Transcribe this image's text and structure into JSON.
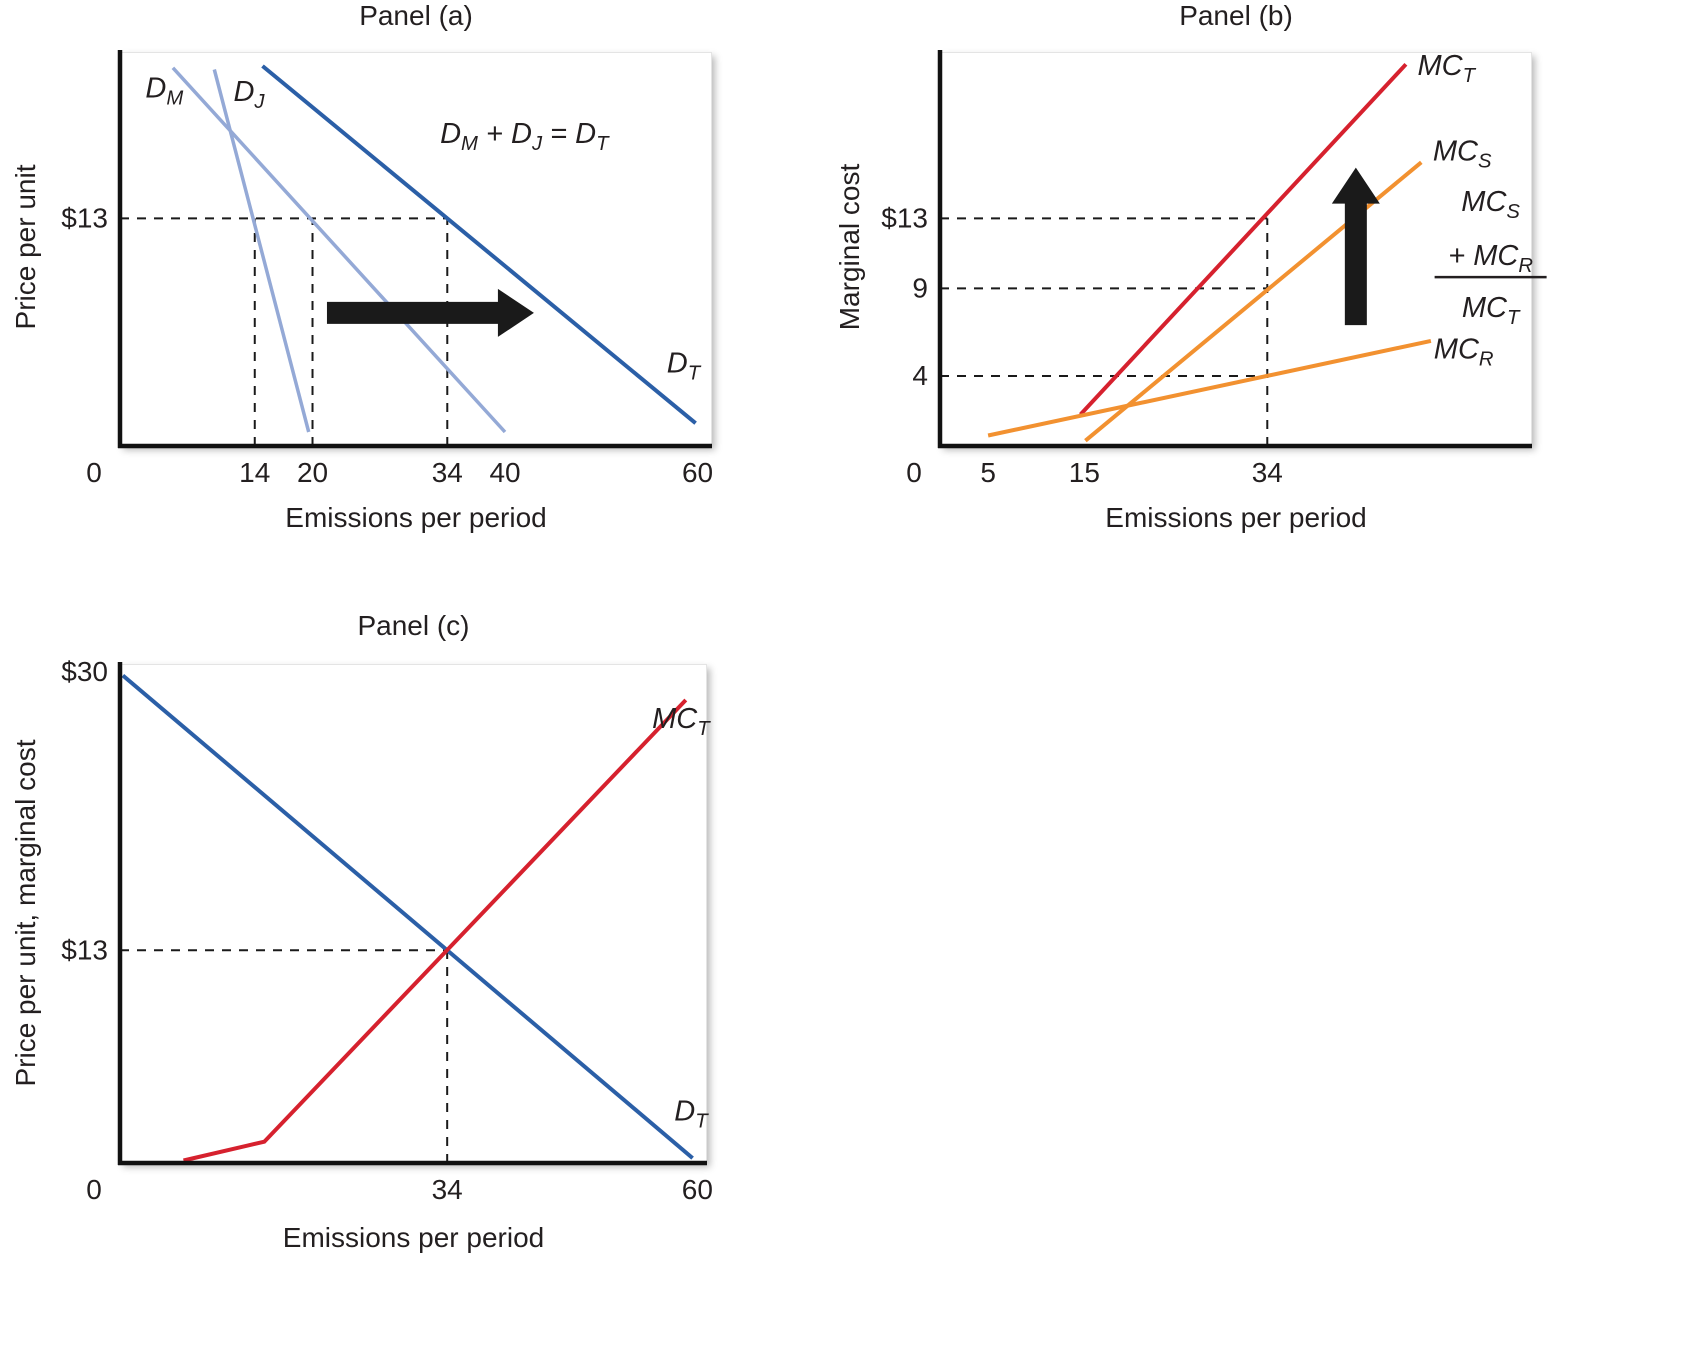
{
  "figure": {
    "background": "#ffffff",
    "text_color": "#231f20"
  },
  "chart_data": [
    {
      "id": "panel-a",
      "type": "line",
      "title": "Panel (a)",
      "xlabel": "Emissions per period",
      "ylabel": "Price per unit",
      "xlim": [
        0,
        61.5
      ],
      "ylim": [
        0,
        22.5
      ],
      "grid": false,
      "xticks": [
        {
          "v": 0,
          "label": "0"
        },
        {
          "v": 14,
          "label": "14"
        },
        {
          "v": 20,
          "label": "20"
        },
        {
          "v": 34,
          "label": "34"
        },
        {
          "v": 40,
          "label": "40"
        },
        {
          "v": 60,
          "label": "60"
        }
      ],
      "yticks": [
        {
          "v": 13,
          "label": "$13"
        }
      ],
      "series": [
        {
          "name": "demand-m",
          "label": "D_M",
          "color": "#94A9D6",
          "width": 3.5,
          "points": [
            [
              5.5,
              21.6
            ],
            [
              40,
              0.8
            ]
          ],
          "label_at": [
            4.6,
            19.9
          ],
          "anchor": "middle"
        },
        {
          "name": "demand-j",
          "label": "D_J",
          "color": "#94A9D6",
          "width": 3.5,
          "points": [
            [
              9.8,
              21.5
            ],
            [
              19.6,
              0.8
            ]
          ],
          "label_at": [
            13.4,
            19.7
          ],
          "anchor": "middle"
        },
        {
          "name": "demand-total",
          "label": "D_T",
          "color": "#2B5FA7",
          "width": 4,
          "points": [
            [
              14.8,
              21.7
            ],
            [
              59.8,
              1.3
            ]
          ],
          "label_at": [
            56.8,
            4.2
          ],
          "anchor": "start"
        }
      ],
      "dashed_guides": [
        [
          [
            0,
            13
          ],
          [
            34,
            13
          ]
        ],
        [
          [
            14,
            0
          ],
          [
            14,
            13
          ]
        ],
        [
          [
            20,
            0
          ],
          [
            20,
            13
          ]
        ],
        [
          [
            34,
            0
          ],
          [
            34,
            13
          ]
        ]
      ],
      "annotation": {
        "text": "D_M + D_J = D_T",
        "at": [
          42,
          17.3
        ]
      },
      "arrow": {
        "dir": "right",
        "from": [
          21.5,
          7.6
        ],
        "to": [
          43,
          7.6
        ],
        "color": "#1a1a1a"
      }
    },
    {
      "id": "panel-b",
      "type": "line",
      "title": "Panel (b)",
      "xlabel": "Emissions per period",
      "ylabel": "Marginal cost",
      "xlim": [
        0,
        61.5
      ],
      "ylim": [
        0,
        22.5
      ],
      "grid": false,
      "xticks": [
        {
          "v": 0,
          "label": "0"
        },
        {
          "v": 5,
          "label": "5"
        },
        {
          "v": 15,
          "label": "15"
        },
        {
          "v": 34,
          "label": "34"
        }
      ],
      "yticks": [
        {
          "v": 13,
          "label": "$13"
        },
        {
          "v": 9,
          "label": "9"
        },
        {
          "v": 4,
          "label": "4"
        }
      ],
      "series": [
        {
          "name": "mc-total",
          "label": "MC_T",
          "color": "#D6212E",
          "width": 4,
          "points": [
            [
              14.6,
              1.8
            ],
            [
              48.4,
              21.8
            ]
          ],
          "label_at": [
            49.6,
            21.2
          ],
          "anchor": "start"
        },
        {
          "name": "mc-s",
          "label": "MC_S",
          "color": "#F29130",
          "width": 4,
          "points": [
            [
              15.1,
              0.3
            ],
            [
              50,
              16.2
            ]
          ],
          "label_at": [
            51.2,
            16.3
          ],
          "anchor": "start"
        },
        {
          "name": "mc-r",
          "label": "MC_R",
          "color": "#F29130",
          "width": 4,
          "points": [
            [
              5,
              0.6
            ],
            [
              51,
              6.0
            ]
          ],
          "label_at": [
            51.3,
            5.0
          ],
          "anchor": "start"
        }
      ],
      "dashed_guides": [
        [
          [
            0,
            13
          ],
          [
            34,
            13
          ]
        ],
        [
          [
            0,
            9
          ],
          [
            34,
            9
          ]
        ],
        [
          [
            0,
            4
          ],
          [
            34,
            4
          ]
        ],
        [
          [
            34,
            0
          ],
          [
            34,
            13
          ]
        ]
      ],
      "fraction": {
        "numerator_lines": [
          "MC_S",
          "+ MC_R"
        ],
        "denominator": "MC_T",
        "at": [
          57.2,
          11.3
        ]
      },
      "arrow": {
        "dir": "up",
        "from": [
          43.2,
          6.9
        ],
        "to": [
          43.2,
          15.9
        ],
        "color": "#1a1a1a"
      }
    },
    {
      "id": "panel-c",
      "type": "line",
      "title": "Panel (c)",
      "xlabel": "Emissions per period",
      "ylabel": "Price per unit, marginal cost",
      "xlim": [
        0,
        61
      ],
      "ylim": [
        0,
        30.5
      ],
      "grid": false,
      "xticks": [
        {
          "v": 0,
          "label": "0"
        },
        {
          "v": 34,
          "label": "34"
        },
        {
          "v": 60,
          "label": "60"
        }
      ],
      "yticks": [
        {
          "v": 30,
          "label": "$30"
        },
        {
          "v": 13,
          "label": "$13"
        }
      ],
      "series": [
        {
          "name": "demand-total",
          "label": "D_T",
          "color": "#2B5FA7",
          "width": 4,
          "points": [
            [
              0.3,
              29.8
            ],
            [
              59.5,
              0.3
            ]
          ],
          "label_at": [
            57.6,
            2.6
          ],
          "anchor": "start"
        },
        {
          "name": "mc-total",
          "label": "MC_T",
          "color": "#D6212E",
          "width": 4,
          "points": [
            [
              6.6,
              0.15
            ],
            [
              15,
              1.3
            ],
            [
              58.8,
              28.3
            ]
          ],
          "label_at": [
            55.3,
            26.6
          ],
          "anchor": "start"
        }
      ],
      "dashed_guides": [
        [
          [
            0,
            13
          ],
          [
            34,
            13
          ]
        ],
        [
          [
            34,
            0
          ],
          [
            34,
            13
          ]
        ]
      ]
    }
  ]
}
